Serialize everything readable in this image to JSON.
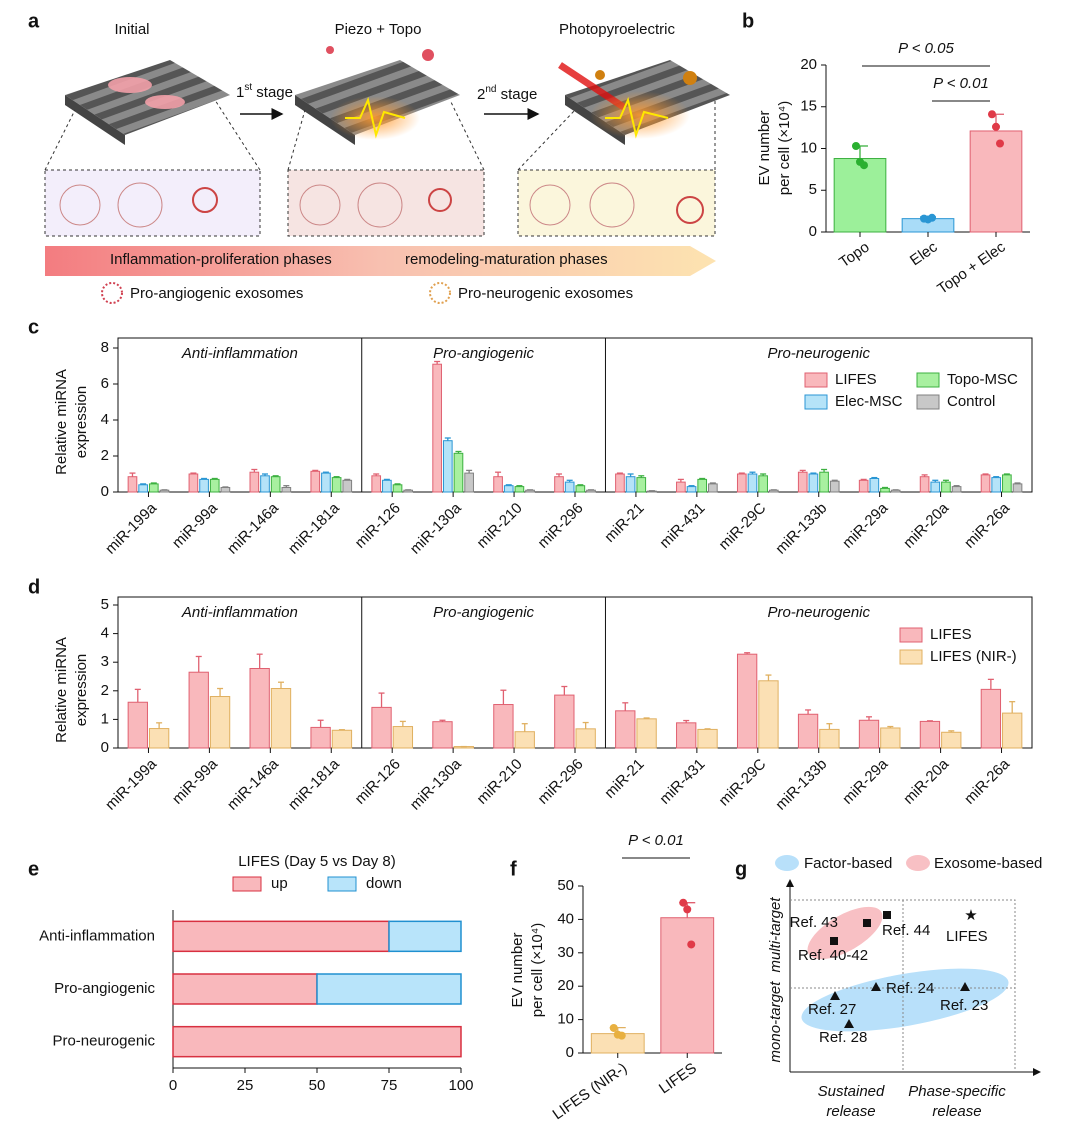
{
  "panel_labels": [
    "a",
    "b",
    "c",
    "d",
    "e",
    "f",
    "g"
  ],
  "diagram": {
    "stages": [
      "Initial",
      "Piezo + Topo",
      "Photopyroelectric"
    ],
    "transitions": [
      {
        "ordinal": "1",
        "suffix": "st",
        "text": " stage"
      },
      {
        "ordinal": "2",
        "suffix": "nd",
        "text": " stage"
      }
    ],
    "phases": [
      "Inflammation-proliferation phases",
      "remodeling-maturation phases"
    ],
    "legend": [
      "Pro-angiogenic exosomes",
      "Pro-neurogenic exosomes"
    ]
  },
  "concept_map": {
    "legend": [
      "Factor-based",
      "Exosome-based"
    ],
    "y_axis": [
      "mono-target",
      "multi-target"
    ],
    "x_axis": [
      [
        "Sustained",
        "release"
      ],
      [
        "Phase-specific",
        "release"
      ]
    ],
    "refs": [
      "Ref. 43",
      "Ref. 44",
      "Ref. 40-42",
      "LIFES",
      "Ref. 23",
      "Ref. 24",
      "Ref. 27",
      "Ref. 28"
    ]
  },
  "chart_data": [
    {
      "type": "bar",
      "ylabel": [
        "EV number",
        "per cell (×10⁴)"
      ],
      "categories": [
        "Topo",
        "Elec",
        "Topo + Elec"
      ],
      "values": [
        8.8,
        1.6,
        12.1
      ],
      "errors": [
        1.5,
        0.2,
        2.0
      ],
      "points": [
        [
          10.3,
          8.4,
          8.0
        ],
        [
          1.6,
          1.5,
          1.7
        ],
        [
          14.1,
          12.6,
          10.6
        ]
      ],
      "colors": [
        "#9cf09a",
        "#a9dcf8",
        "#f9b8bc"
      ],
      "edge_colors": [
        "#3cb040",
        "#2a96d4",
        "#e06070"
      ],
      "point_colors": [
        "#2ab030",
        "#2a96d4",
        "#e03a48"
      ],
      "ylim": [
        0,
        20
      ],
      "yticks": [
        0,
        5,
        10,
        15,
        20
      ],
      "annotations": [
        "P < 0.05",
        "P < 0.01"
      ]
    },
    {
      "type": "grouped_bar",
      "ylabel": [
        "Relative miRNA",
        "expression"
      ],
      "sections": [
        {
          "label": "Anti-inflammation",
          "categories": [
            "miR-199a",
            "miR-99a",
            "miR-146a",
            "miR-181a"
          ]
        },
        {
          "label": "Pro-angiogenic",
          "categories": [
            "miR-126",
            "miR-130a",
            "miR-210",
            "miR-296"
          ]
        },
        {
          "label": "Pro-neurogenic",
          "categories": [
            "miR-21",
            "miR-431",
            "miR-29C",
            "miR-133b",
            "miR-29a",
            "miR-20a",
            "miR-26a"
          ]
        }
      ],
      "series": [
        {
          "name": "LIFES",
          "color": "#f9b8bc",
          "edge": "#e06070",
          "values": [
            0.85,
            1.0,
            1.1,
            1.15,
            0.9,
            7.1,
            0.85,
            0.85,
            1.0,
            0.55,
            1.0,
            1.1,
            0.65,
            0.85,
            0.95
          ],
          "errors": [
            0.2,
            0.05,
            0.15,
            0.05,
            0.1,
            0.15,
            0.25,
            0.15,
            0.05,
            0.15,
            0.05,
            0.1,
            0.05,
            0.1,
            0.05
          ]
        },
        {
          "name": "Elec-MSC",
          "color": "#b5e3f8",
          "edge": "#2a96d4",
          "values": [
            0.4,
            0.7,
            0.9,
            1.05,
            0.65,
            2.85,
            0.35,
            0.55,
            0.85,
            0.3,
            1.0,
            1.0,
            0.75,
            0.55,
            0.8
          ],
          "errors": [
            0.05,
            0.05,
            0.1,
            0.05,
            0.05,
            0.15,
            0.05,
            0.1,
            0.15,
            0.05,
            0.1,
            0.05,
            0.05,
            0.1,
            0.05
          ]
        },
        {
          "name": "Topo-MSC",
          "color": "#a8f0a0",
          "edge": "#3cb040",
          "values": [
            0.45,
            0.7,
            0.85,
            0.8,
            0.4,
            2.15,
            0.3,
            0.35,
            0.8,
            0.7,
            0.9,
            1.1,
            0.2,
            0.55,
            0.95
          ],
          "errors": [
            0.05,
            0.05,
            0.05,
            0.05,
            0.05,
            0.1,
            0.05,
            0.05,
            0.1,
            0.05,
            0.1,
            0.15,
            0.05,
            0.1,
            0.05
          ]
        },
        {
          "name": "Control",
          "color": "#c8c8c8",
          "edge": "#808080",
          "values": [
            0.1,
            0.25,
            0.25,
            0.65,
            0.1,
            1.05,
            0.1,
            0.1,
            0.05,
            0.45,
            0.1,
            0.6,
            0.1,
            0.3,
            0.45
          ],
          "errors": [
            0.02,
            0.03,
            0.1,
            0.05,
            0.02,
            0.15,
            0.02,
            0.02,
            0.02,
            0.05,
            0.02,
            0.05,
            0.02,
            0.05,
            0.05
          ]
        }
      ],
      "ylim": [
        0,
        8
      ],
      "yticks": [
        0,
        2,
        4,
        6,
        8
      ],
      "legend": "upper right"
    },
    {
      "type": "grouped_bar",
      "ylabel": [
        "Relative miRNA",
        "expression"
      ],
      "sections": [
        {
          "label": "Anti-inflammation",
          "categories": [
            "miR-199a",
            "miR-99a",
            "miR-146a",
            "miR-181a"
          ]
        },
        {
          "label": "Pro-angiogenic",
          "categories": [
            "miR-126",
            "miR-130a",
            "miR-210",
            "miR-296"
          ]
        },
        {
          "label": "Pro-neurogenic",
          "categories": [
            "miR-21",
            "miR-431",
            "miR-29C",
            "miR-133b",
            "miR-29a",
            "miR-20a",
            "miR-26a"
          ]
        }
      ],
      "series": [
        {
          "name": "LIFES",
          "color": "#f9b8bc",
          "edge": "#e06070",
          "values": [
            1.6,
            2.65,
            2.78,
            0.72,
            1.42,
            0.92,
            1.52,
            1.85,
            1.3,
            0.88,
            3.28,
            1.18,
            0.97,
            0.93,
            2.05
          ],
          "errors": [
            0.45,
            0.55,
            0.5,
            0.25,
            0.5,
            0.05,
            0.5,
            0.3,
            0.28,
            0.08,
            0.05,
            0.15,
            0.12,
            0.02,
            0.35
          ]
        },
        {
          "name": "LIFES (NIR-)",
          "color": "#fbe0b4",
          "edge": "#e0b060",
          "values": [
            0.68,
            1.8,
            2.08,
            0.62,
            0.75,
            0.05,
            0.57,
            0.67,
            1.02,
            0.65,
            2.35,
            0.65,
            0.7,
            0.55,
            1.22
          ],
          "errors": [
            0.2,
            0.28,
            0.22,
            0.02,
            0.18,
            0.0,
            0.28,
            0.22,
            0.03,
            0.02,
            0.2,
            0.2,
            0.05,
            0.05,
            0.4
          ]
        }
      ],
      "ylim": [
        0,
        5
      ],
      "yticks": [
        0,
        1,
        2,
        3,
        4,
        5
      ],
      "legend": "upper right"
    },
    {
      "type": "stacked_barh",
      "title": "LIFES (Day 5 vs Day 8)",
      "categories": [
        "Anti-inflammation",
        "Pro-angiogenic",
        "Pro-neurogenic"
      ],
      "series": [
        {
          "name": "up",
          "color": "#f9b8bc",
          "edge": "#d83040",
          "values": [
            75,
            50,
            100
          ]
        },
        {
          "name": "down",
          "color": "#b8e4fa",
          "edge": "#2090d0",
          "values": [
            25,
            50,
            0
          ]
        }
      ],
      "xlim": [
        0,
        100
      ],
      "xticks": [
        0,
        25,
        50,
        75,
        100
      ]
    },
    {
      "type": "bar",
      "ylabel": [
        "EV number",
        "per cell (×10⁴)"
      ],
      "categories": [
        "LIFES (NIR-)",
        "LIFES"
      ],
      "values": [
        5.8,
        40.5
      ],
      "errors": [
        1.8,
        4.5
      ],
      "points": [
        [
          7.5,
          5.5,
          5.2
        ],
        [
          45.0,
          43.0,
          32.5
        ]
      ],
      "colors": [
        "#fbe0b4",
        "#f9b8bc"
      ],
      "edge_colors": [
        "#e0b060",
        "#e06070"
      ],
      "point_colors": [
        "#e8b040",
        "#e03a48"
      ],
      "ylim": [
        0,
        50
      ],
      "yticks": [
        0,
        10,
        20,
        30,
        40,
        50
      ],
      "annotations": [
        "P < 0.01"
      ]
    }
  ]
}
